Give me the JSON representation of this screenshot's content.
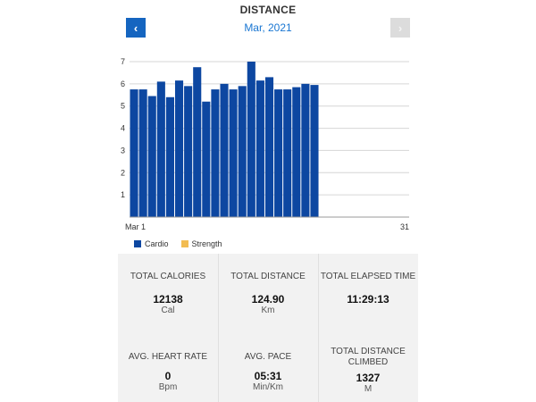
{
  "header": {
    "title": "DISTANCE",
    "month": "Mar, 2021",
    "prev_icon": "‹",
    "next_icon": "›"
  },
  "chart_data": {
    "type": "bar",
    "ylim": [
      0,
      7
    ],
    "yticks": [
      1,
      2,
      3,
      4,
      5,
      6,
      7
    ],
    "x_start_label": "Mar 1",
    "x_end_label": "31",
    "days_in_month": 31,
    "grid": true,
    "legend_position": "bottom-left",
    "series": [
      {
        "name": "Cardio",
        "color": "#0d47a1",
        "values": [
          5.75,
          5.75,
          5.45,
          6.1,
          5.4,
          6.15,
          5.9,
          6.75,
          5.2,
          5.75,
          6.0,
          5.75,
          5.9,
          7.0,
          6.15,
          6.3,
          5.75,
          5.75,
          5.85,
          6.0,
          5.95
        ]
      },
      {
        "name": "Strength",
        "color": "#f2bc52",
        "values": []
      }
    ]
  },
  "stats": {
    "total_calories": {
      "label": "TOTAL CALORIES",
      "value": "12138",
      "unit": "Cal"
    },
    "total_distance": {
      "label": "TOTAL DISTANCE",
      "value": "124.90",
      "unit": "Km"
    },
    "total_elapsed_time": {
      "label": "TOTAL ELAPSED TIME",
      "value": "11:29:13",
      "unit": ""
    },
    "avg_heart_rate": {
      "label": "AVG. HEART RATE",
      "value": "0",
      "unit": "Bpm"
    },
    "avg_pace": {
      "label": "AVG. PACE",
      "value": "05:31",
      "unit": "Min/Km"
    },
    "total_distance_climbed": {
      "label1": "TOTAL DISTANCE",
      "label2": "CLIMBED",
      "value": "1327",
      "unit": "M"
    }
  }
}
